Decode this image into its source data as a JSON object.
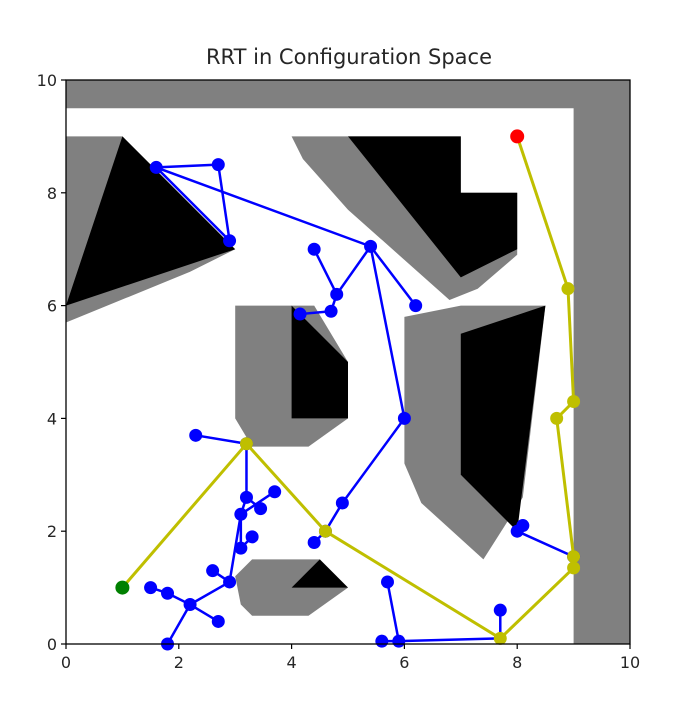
{
  "chart_data": {
    "type": "scatter",
    "title": "RRT in Configuration Space",
    "xlabel": "",
    "ylabel": "",
    "xlim": [
      0,
      10
    ],
    "ylim": [
      0,
      10
    ],
    "xticks": [
      "0",
      "2",
      "4",
      "6",
      "8",
      "10"
    ],
    "yticks": [
      "0",
      "2",
      "4",
      "6",
      "8",
      "10"
    ],
    "grid": false,
    "colors": {
      "tree": "#0000ff",
      "path": "#bfbf00",
      "path_node": "#bfbf00",
      "start": "#008000",
      "goal": "#ff0000",
      "obstacle_inflated": "#808080",
      "obstacle": "#000000"
    },
    "inflated_obstacles": [
      [
        [
          0,
          9.5
        ],
        [
          0,
          10
        ],
        [
          10,
          10
        ],
        [
          10,
          0
        ],
        [
          9,
          0
        ],
        [
          9,
          9.5
        ]
      ],
      [
        [
          0,
          9
        ],
        [
          1,
          9
        ],
        [
          3,
          7
        ],
        [
          2.2,
          6.6
        ],
        [
          0,
          5.7
        ]
      ],
      [
        [
          4,
          9
        ],
        [
          7,
          9
        ],
        [
          7,
          8
        ],
        [
          8,
          8
        ],
        [
          8,
          6.9
        ],
        [
          7.3,
          6.3
        ],
        [
          6.8,
          6.1
        ],
        [
          5,
          7.7
        ],
        [
          4.2,
          8.6
        ]
      ],
      [
        [
          3,
          6
        ],
        [
          4.4,
          6
        ],
        [
          5,
          5
        ],
        [
          5,
          4
        ],
        [
          4.3,
          3.5
        ],
        [
          3.3,
          3.5
        ],
        [
          3,
          4
        ]
      ],
      [
        [
          6,
          5.8
        ],
        [
          7,
          6
        ],
        [
          8.5,
          6
        ],
        [
          8.1,
          2.6
        ],
        [
          7.4,
          1.5
        ],
        [
          6.3,
          2.5
        ],
        [
          6,
          3.2
        ]
      ],
      [
        [
          3,
          1.2
        ],
        [
          3.3,
          1.5
        ],
        [
          4.5,
          1.5
        ],
        [
          5,
          1
        ],
        [
          4.3,
          0.5
        ],
        [
          3.3,
          0.5
        ],
        [
          3.1,
          0.7
        ]
      ]
    ],
    "obstacles": [
      [
        [
          1,
          9
        ],
        [
          3,
          7
        ],
        [
          0,
          6
        ]
      ],
      [
        [
          5,
          9
        ],
        [
          7,
          9
        ],
        [
          7,
          8
        ],
        [
          8,
          8
        ],
        [
          8,
          7
        ],
        [
          7,
          6.5
        ]
      ],
      [
        [
          4,
          6
        ],
        [
          5,
          5
        ],
        [
          5,
          4
        ],
        [
          4,
          4
        ]
      ],
      [
        [
          7,
          5.5
        ],
        [
          8.5,
          6
        ],
        [
          8,
          2
        ],
        [
          7,
          3
        ]
      ],
      [
        [
          4,
          1
        ],
        [
          4.5,
          1.5
        ],
        [
          5,
          1
        ]
      ]
    ],
    "tree_nodes": [
      [
        1.6,
        8.45
      ],
      [
        2.7,
        8.5
      ],
      [
        2.9,
        7.15
      ],
      [
        5.4,
        7.05
      ],
      [
        4.4,
        7.0
      ],
      [
        4.8,
        6.2
      ],
      [
        4.7,
        5.9
      ],
      [
        4.15,
        5.85
      ],
      [
        6.2,
        6.0
      ],
      [
        6.0,
        4.0
      ],
      [
        4.9,
        2.5
      ],
      [
        4.6,
        2.0
      ],
      [
        4.4,
        1.8
      ],
      [
        2.3,
        3.7
      ],
      [
        3.2,
        3.55
      ],
      [
        3.2,
        2.6
      ],
      [
        3.7,
        2.7
      ],
      [
        3.45,
        2.4
      ],
      [
        3.1,
        2.3
      ],
      [
        3.3,
        1.9
      ],
      [
        3.1,
        1.7
      ],
      [
        2.6,
        1.3
      ],
      [
        2.9,
        1.1
      ],
      [
        2.2,
        0.7
      ],
      [
        1.8,
        0.9
      ],
      [
        1.5,
        1.0
      ],
      [
        2.7,
        0.4
      ],
      [
        1.8,
        0.0
      ],
      [
        5.7,
        1.1
      ],
      [
        5.9,
        0.05
      ],
      [
        5.6,
        0.05
      ],
      [
        7.7,
        0.6
      ],
      [
        8.0,
        2.0
      ],
      [
        8.1,
        2.1
      ],
      [
        9.0,
        1.55
      ]
    ],
    "tree_edges": [
      [
        [
          1.6,
          8.45
        ],
        [
          2.7,
          8.5
        ]
      ],
      [
        [
          2.7,
          8.5
        ],
        [
          2.9,
          7.15
        ]
      ],
      [
        [
          1.6,
          8.45
        ],
        [
          2.9,
          7.15
        ]
      ],
      [
        [
          1.6,
          8.45
        ],
        [
          5.4,
          7.05
        ]
      ],
      [
        [
          5.4,
          7.05
        ],
        [
          4.8,
          6.2
        ]
      ],
      [
        [
          4.8,
          6.2
        ],
        [
          4.4,
          7.0
        ]
      ],
      [
        [
          4.8,
          6.2
        ],
        [
          4.7,
          5.9
        ]
      ],
      [
        [
          4.7,
          5.9
        ],
        [
          4.15,
          5.85
        ]
      ],
      [
        [
          5.4,
          7.05
        ],
        [
          6.2,
          6.0
        ]
      ],
      [
        [
          5.4,
          7.05
        ],
        [
          6.0,
          4.0
        ]
      ],
      [
        [
          6.0,
          4.0
        ],
        [
          4.9,
          2.5
        ]
      ],
      [
        [
          4.9,
          2.5
        ],
        [
          4.6,
          2.0
        ]
      ],
      [
        [
          4.6,
          2.0
        ],
        [
          4.4,
          1.8
        ]
      ],
      [
        [
          3.2,
          3.55
        ],
        [
          2.3,
          3.7
        ]
      ],
      [
        [
          3.2,
          3.55
        ],
        [
          3.2,
          2.6
        ]
      ],
      [
        [
          3.2,
          2.6
        ],
        [
          3.1,
          2.3
        ]
      ],
      [
        [
          3.1,
          2.3
        ],
        [
          3.7,
          2.7
        ]
      ],
      [
        [
          3.2,
          2.6
        ],
        [
          3.45,
          2.4
        ]
      ],
      [
        [
          3.1,
          2.3
        ],
        [
          3.1,
          1.7
        ]
      ],
      [
        [
          3.1,
          1.7
        ],
        [
          3.3,
          1.9
        ]
      ],
      [
        [
          3.1,
          2.3
        ],
        [
          2.9,
          1.1
        ]
      ],
      [
        [
          2.9,
          1.1
        ],
        [
          2.6,
          1.3
        ]
      ],
      [
        [
          2.9,
          1.1
        ],
        [
          2.2,
          0.7
        ]
      ],
      [
        [
          2.2,
          0.7
        ],
        [
          1.8,
          0.9
        ]
      ],
      [
        [
          1.8,
          0.9
        ],
        [
          1.5,
          1.0
        ]
      ],
      [
        [
          2.2,
          0.7
        ],
        [
          2.7,
          0.4
        ]
      ],
      [
        [
          2.2,
          0.7
        ],
        [
          1.8,
          0.0
        ]
      ],
      [
        [
          5.7,
          1.1
        ],
        [
          5.9,
          0.05
        ]
      ],
      [
        [
          5.6,
          0.05
        ],
        [
          5.9,
          0.05
        ]
      ],
      [
        [
          5.9,
          0.05
        ],
        [
          7.7,
          0.1
        ]
      ],
      [
        [
          7.7,
          0.6
        ],
        [
          7.7,
          0.1
        ]
      ],
      [
        [
          8.0,
          2.0
        ],
        [
          8.1,
          2.1
        ]
      ],
      [
        [
          8.0,
          2.0
        ],
        [
          9.0,
          1.55
        ]
      ]
    ],
    "path": [
      [
        1.0,
        1.0
      ],
      [
        3.2,
        3.55
      ],
      [
        4.6,
        2.0
      ],
      [
        7.7,
        0.1
      ],
      [
        9.0,
        1.35
      ],
      [
        9.0,
        1.55
      ],
      [
        8.7,
        4.0
      ],
      [
        9.0,
        4.3
      ],
      [
        8.9,
        6.3
      ],
      [
        8.0,
        9.0
      ]
    ],
    "start": [
      1.0,
      1.0
    ],
    "goal": [
      8.0,
      9.0
    ]
  }
}
